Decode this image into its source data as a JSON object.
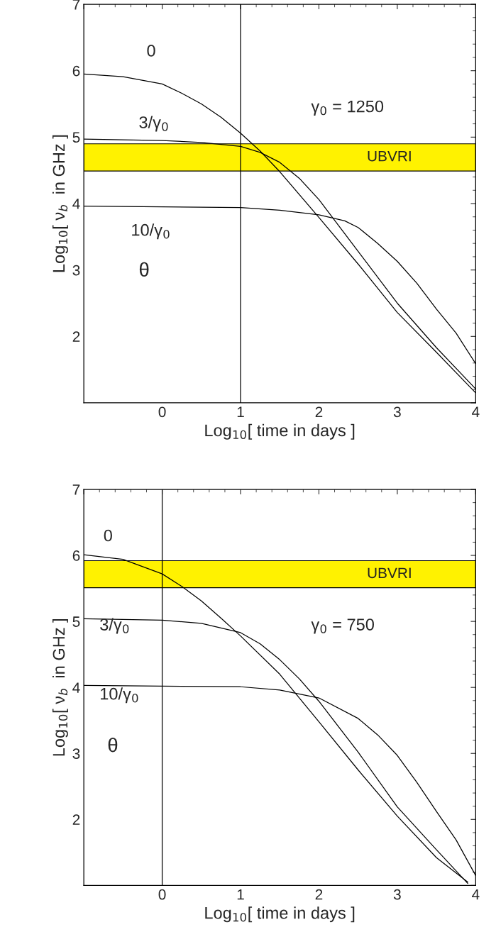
{
  "chart_data": [
    {
      "type": "line",
      "xlabel": "Log$_{10}$[ time in days ]",
      "ylabel": "Log$_{10}$[ ν$_{b}$  in GHz ]",
      "xlim": [
        -1,
        4
      ],
      "ylim": [
        1,
        7
      ],
      "xticks": [
        {
          "value": -1,
          "label": null
        },
        0,
        1,
        2,
        3,
        4
      ],
      "yticks": [
        {
          "value": 1,
          "label": null
        },
        2,
        3,
        4,
        5,
        6,
        7
      ],
      "grid": false,
      "legend": false,
      "marker": "none",
      "line_style": "solid",
      "series": [
        {
          "color": "#000000",
          "x": [
            -1,
            -0.5,
            0,
            0.25,
            0.5,
            0.75,
            1,
            1.25,
            1.5,
            2,
            2.5,
            3,
            3.5,
            4
          ],
          "values": [
            5.95,
            5.91,
            5.8,
            5.66,
            5.5,
            5.3,
            5.06,
            4.79,
            4.48,
            3.79,
            3.09,
            2.36,
            1.76,
            1.15
          ]
        },
        {
          "color": "#000000",
          "x": [
            -1,
            0,
            0.5,
            1,
            1.25,
            1.5,
            1.75,
            2,
            2.5,
            3,
            3.5,
            4
          ],
          "values": [
            4.97,
            4.95,
            4.92,
            4.86,
            4.77,
            4.62,
            4.38,
            4.06,
            3.28,
            2.5,
            1.83,
            1.21
          ]
        },
        {
          "color": "#000000",
          "x": [
            -1,
            0,
            1,
            1.5,
            2,
            2.33,
            2.5,
            2.75,
            3,
            3.25,
            3.5,
            3.75,
            4
          ],
          "values": [
            3.96,
            3.95,
            3.94,
            3.9,
            3.83,
            3.74,
            3.64,
            3.4,
            3.13,
            2.8,
            2.41,
            2.05,
            1.59
          ]
        }
      ],
      "ref_lines": [
        {
          "axis": "x",
          "value": 1,
          "color": "#000000"
        }
      ],
      "bands": [
        {
          "axis": "y",
          "from": 4.49,
          "to": 4.9,
          "label": "UBVRI",
          "color": "#fff200"
        }
      ],
      "annotations": [
        "0",
        "3/γ$_{0}$",
        "10/γ$_{0}$",
        "θ",
        "γ$_{0}$ = 1250"
      ]
    },
    {
      "type": "line",
      "xlabel": "Log$_{10}$[ time in days ]",
      "ylabel": "Log$_{10}$[ ν$_{b}$  in GHz ]",
      "xlim": [
        -1,
        4
      ],
      "ylim": [
        1,
        7
      ],
      "xticks": [
        {
          "value": -1,
          "label": null
        },
        0,
        1,
        2,
        3,
        4
      ],
      "yticks": [
        {
          "value": 1,
          "label": null
        },
        2,
        3,
        4,
        5,
        6,
        7
      ],
      "grid": false,
      "legend": false,
      "marker": "none",
      "line_style": "solid",
      "series": [
        {
          "color": "#000000",
          "x": [
            -1,
            -0.5,
            0,
            0.25,
            0.5,
            0.75,
            1,
            1.5,
            2,
            2.5,
            3,
            3.5,
            3.9
          ],
          "values": [
            6.01,
            5.94,
            5.72,
            5.53,
            5.31,
            5.05,
            4.78,
            4.2,
            3.48,
            2.75,
            2.05,
            1.42,
            1.05
          ]
        },
        {
          "color": "#000000",
          "x": [
            -1,
            0,
            0.5,
            1,
            1.25,
            1.5,
            1.75,
            2,
            2.5,
            3,
            3.5,
            3.9
          ],
          "values": [
            5.04,
            5.02,
            4.97,
            4.83,
            4.66,
            4.42,
            4.13,
            3.79,
            3.02,
            2.19,
            1.54,
            1.03
          ]
        },
        {
          "color": "#000000",
          "x": [
            -1,
            0,
            1,
            1.5,
            2,
            2.5,
            2.75,
            3,
            3.25,
            3.5,
            3.75,
            4
          ],
          "values": [
            4.03,
            4.02,
            4.01,
            3.96,
            3.84,
            3.53,
            3.28,
            2.97,
            2.56,
            2.12,
            1.69,
            1.15
          ]
        }
      ],
      "ref_lines": [
        {
          "axis": "x",
          "value": 0,
          "color": "#000000"
        }
      ],
      "bands": [
        {
          "axis": "y",
          "from": 5.51,
          "to": 5.92,
          "label": "UBVRI",
          "color": "#fff200"
        }
      ],
      "annotations": [
        "0",
        "3/γ$_{0}$",
        "10/γ$_{0}$",
        "θ",
        "γ$_{0}$ = 750"
      ]
    }
  ]
}
